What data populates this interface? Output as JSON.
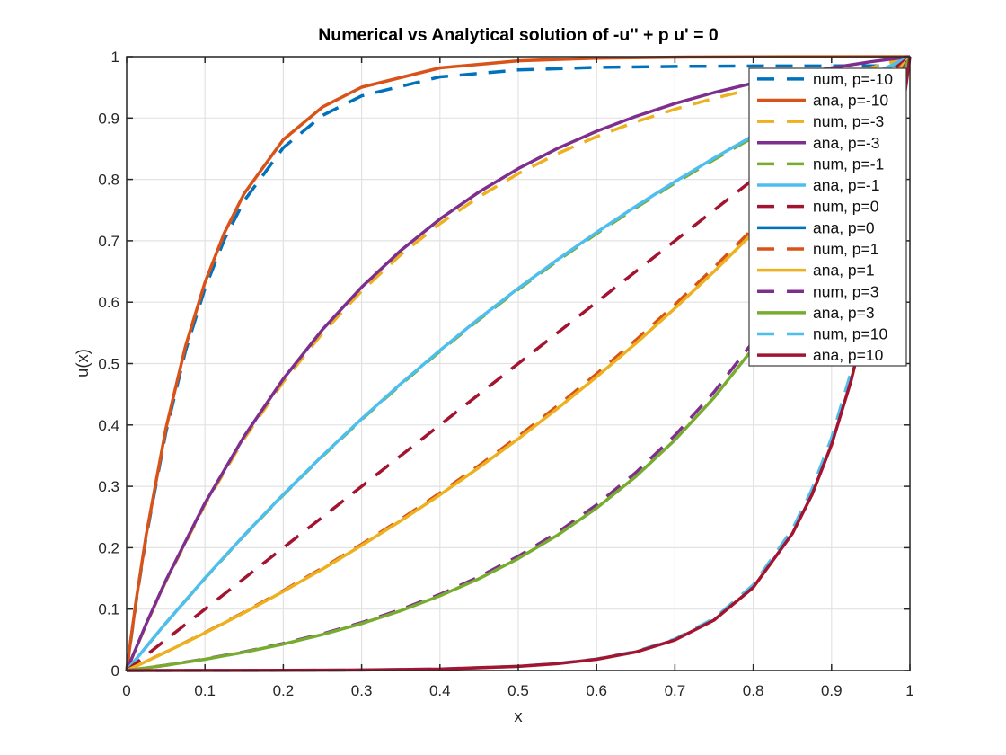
{
  "figure": {
    "background": "#ffffff",
    "axes_color": "#262626",
    "grid_color": "#e2e2e2",
    "legend_border_color": "#3b3b3b",
    "legend_background": "#ffffff"
  },
  "chart_data": {
    "type": "line",
    "title": "Numerical vs Analytical solution of -u'' + p u' = 0",
    "grid": true,
    "legend_position": "northeast-inside",
    "x_axis": {
      "label": "x",
      "min": 0,
      "max": 1,
      "ticks": [
        0,
        0.1,
        0.2,
        0.3,
        0.4,
        0.5,
        0.6,
        0.7,
        0.8,
        0.9,
        1
      ],
      "tick_labels": [
        "0",
        "0.1",
        "0.2",
        "0.3",
        "0.4",
        "0.5",
        "0.6",
        "0.7",
        "0.8",
        "0.9",
        "1"
      ]
    },
    "y_axis": {
      "label": "u(x)",
      "min": 0,
      "max": 1,
      "ticks": [
        0,
        0.1,
        0.2,
        0.3,
        0.4,
        0.5,
        0.6,
        0.7,
        0.8,
        0.9,
        1
      ],
      "tick_labels": [
        "0",
        "0.1",
        "0.2",
        "0.3",
        "0.4",
        "0.5",
        "0.6",
        "0.7",
        "0.8",
        "0.9",
        "1"
      ]
    },
    "series": [
      {
        "id": "num-p-neg10",
        "label": "num, p=-10",
        "p": -10,
        "kind": "numerical",
        "color": "#0072BD",
        "line": "dashed",
        "x": [
          0,
          0.0125,
          0.025,
          0.05,
          0.075,
          0.1,
          0.125,
          0.15,
          0.2,
          0.25,
          0.3,
          0.4,
          0.5,
          0.6,
          0.7,
          0.8,
          0.9,
          0.9875,
          1
        ],
        "y": [
          0,
          0.1157,
          0.2179,
          0.3876,
          0.5197,
          0.6226,
          0.7028,
          0.7652,
          0.8517,
          0.9041,
          0.936,
          0.967,
          0.9784,
          0.9825,
          0.9841,
          0.9847,
          0.9849,
          0.985,
          1
        ]
      },
      {
        "id": "ana-p-neg10",
        "label": "ana, p=-10",
        "p": -10,
        "kind": "analytical",
        "color": "#D95319",
        "line": "solid",
        "x": [
          0,
          0.0125,
          0.025,
          0.05,
          0.075,
          0.1,
          0.125,
          0.15,
          0.2,
          0.25,
          0.3,
          0.4,
          0.5,
          0.6,
          0.7,
          0.8,
          0.9,
          1
        ],
        "y": [
          0,
          0.1175,
          0.2212,
          0.3935,
          0.5276,
          0.6321,
          0.7135,
          0.7769,
          0.8647,
          0.9179,
          0.9502,
          0.9817,
          0.9933,
          0.9975,
          0.9991,
          0.9997,
          0.9999,
          1
        ]
      },
      {
        "id": "num-p-neg3",
        "label": "num, p=-3",
        "p": -3,
        "kind": "numerical",
        "color": "#EDB120",
        "line": "dashed",
        "x": [
          0,
          0.025,
          0.05,
          0.1,
          0.15,
          0.2,
          0.25,
          0.3,
          0.35,
          0.4,
          0.45,
          0.5,
          0.55,
          0.6,
          0.65,
          0.7,
          0.75,
          0.8,
          0.85,
          0.9,
          0.95,
          1
        ],
        "y": [
          0,
          0.0753,
          0.1451,
          0.2701,
          0.3776,
          0.4702,
          0.5497,
          0.6183,
          0.6774,
          0.728,
          0.7718,
          0.8094,
          0.8419,
          0.8697,
          0.8937,
          0.9143,
          0.9321,
          0.9474,
          0.9605,
          0.9719,
          0.9817,
          1
        ]
      },
      {
        "id": "ana-p-neg3",
        "label": "ana, p=-3",
        "p": -3,
        "kind": "analytical",
        "color": "#7E2F8E",
        "line": "solid",
        "x": [
          0,
          0.025,
          0.05,
          0.1,
          0.15,
          0.2,
          0.25,
          0.3,
          0.35,
          0.4,
          0.45,
          0.5,
          0.55,
          0.6,
          0.65,
          0.7,
          0.75,
          0.8,
          0.85,
          0.9,
          0.95,
          1
        ],
        "y": [
          0,
          0.0761,
          0.1466,
          0.2728,
          0.3814,
          0.4749,
          0.5553,
          0.6245,
          0.6842,
          0.7354,
          0.7796,
          0.8176,
          0.8504,
          0.8785,
          0.9027,
          0.9235,
          0.9415,
          0.957,
          0.9702,
          0.9817,
          0.9916,
          1
        ]
      },
      {
        "id": "num-p-neg1",
        "label": "num, p=-1",
        "p": -1,
        "kind": "numerical",
        "color": "#77AC30",
        "line": "dashed",
        "x": [
          0,
          0.05,
          0.1,
          0.15,
          0.2,
          0.25,
          0.3,
          0.35,
          0.4,
          0.45,
          0.5,
          0.55,
          0.6,
          0.65,
          0.7,
          0.75,
          0.8,
          0.85,
          0.9,
          0.95,
          1
        ],
        "y": [
          0,
          0.077,
          0.1501,
          0.2197,
          0.2859,
          0.3489,
          0.4088,
          0.4658,
          0.5199,
          0.5716,
          0.6206,
          0.6673,
          0.7117,
          0.7538,
          0.7939,
          0.8322,
          0.8685,
          0.9031,
          0.936,
          0.9673,
          1
        ]
      },
      {
        "id": "ana-p-neg1",
        "label": "ana, p=-1",
        "p": -1,
        "kind": "analytical",
        "color": "#4DBEEE",
        "line": "solid",
        "x": [
          0,
          0.05,
          0.1,
          0.15,
          0.2,
          0.25,
          0.3,
          0.35,
          0.4,
          0.45,
          0.5,
          0.55,
          0.6,
          0.65,
          0.7,
          0.75,
          0.8,
          0.85,
          0.9,
          0.95,
          1
        ],
        "y": [
          0,
          0.0772,
          0.1506,
          0.2204,
          0.2868,
          0.3499,
          0.41,
          0.4672,
          0.5215,
          0.5733,
          0.6225,
          0.6693,
          0.7138,
          0.7561,
          0.7963,
          0.8347,
          0.8711,
          0.9058,
          0.9388,
          0.9702,
          1
        ]
      },
      {
        "id": "num-p-0",
        "label": "num, p=0",
        "p": 0,
        "kind": "numerical",
        "color": "#A2142F",
        "line": "dashed",
        "x": [
          0,
          0.25,
          0.5,
          0.75,
          1
        ],
        "y": [
          0,
          0.25,
          0.5,
          0.75,
          1
        ]
      },
      {
        "id": "ana-p-0",
        "label": "ana, p=0",
        "p": 0,
        "kind": "analytical",
        "color": "#0072BD",
        "line": "solid",
        "x": [],
        "y": [],
        "rendered": false
      },
      {
        "id": "num-p-1",
        "label": "num, p=1",
        "p": 1,
        "kind": "numerical",
        "color": "#D95319",
        "line": "dashed",
        "x": [
          0,
          0.05,
          0.1,
          0.15,
          0.2,
          0.25,
          0.3,
          0.35,
          0.4,
          0.45,
          0.5,
          0.55,
          0.6,
          0.65,
          0.7,
          0.75,
          0.8,
          0.85,
          0.9,
          0.95,
          1
        ],
        "y": [
          0,
          0.0302,
          0.0618,
          0.0951,
          0.1302,
          0.167,
          0.2056,
          0.2463,
          0.2891,
          0.334,
          0.3813,
          0.4311,
          0.4832,
          0.5381,
          0.5959,
          0.6566,
          0.7203,
          0.7874,
          0.858,
          0.932,
          1
        ]
      },
      {
        "id": "ana-p-1",
        "label": "ana, p=1",
        "p": 1,
        "kind": "analytical",
        "color": "#EDB120",
        "line": "solid",
        "x": [
          0,
          0.05,
          0.1,
          0.15,
          0.2,
          0.25,
          0.3,
          0.35,
          0.4,
          0.45,
          0.5,
          0.55,
          0.6,
          0.65,
          0.7,
          0.75,
          0.8,
          0.85,
          0.9,
          0.95,
          1
        ],
        "y": [
          0,
          0.0299,
          0.0612,
          0.0942,
          0.1289,
          0.1653,
          0.2036,
          0.2439,
          0.2862,
          0.3307,
          0.3775,
          0.4268,
          0.4784,
          0.5328,
          0.59,
          0.6501,
          0.7132,
          0.7796,
          0.8495,
          0.9228,
          1
        ]
      },
      {
        "id": "num-p-3",
        "label": "num, p=3",
        "p": 3,
        "kind": "numerical",
        "color": "#7E2F8E",
        "line": "dashed",
        "x": [
          0,
          0.05,
          0.1,
          0.15,
          0.2,
          0.25,
          0.3,
          0.35,
          0.4,
          0.45,
          0.5,
          0.55,
          0.6,
          0.65,
          0.7,
          0.75,
          0.8,
          0.85,
          0.9,
          0.95,
          0.975,
          1
        ],
        "y": [
          0,
          0.0087,
          0.0187,
          0.0304,
          0.044,
          0.0597,
          0.078,
          0.0992,
          0.124,
          0.1527,
          0.1861,
          0.2248,
          0.2699,
          0.3222,
          0.383,
          0.4536,
          0.5357,
          0.631,
          0.7417,
          0.8705,
          0.9422,
          1
        ]
      },
      {
        "id": "ana-p-3",
        "label": "ana, p=3",
        "p": 3,
        "kind": "analytical",
        "color": "#77AC30",
        "line": "solid",
        "x": [
          0,
          0.05,
          0.1,
          0.15,
          0.2,
          0.25,
          0.3,
          0.35,
          0.4,
          0.45,
          0.5,
          0.55,
          0.6,
          0.65,
          0.7,
          0.75,
          0.8,
          0.85,
          0.9,
          0.95,
          0.975,
          1
        ],
        "y": [
          0,
          0.0085,
          0.0183,
          0.0298,
          0.0431,
          0.0585,
          0.0765,
          0.0973,
          0.1216,
          0.1497,
          0.1824,
          0.2204,
          0.2646,
          0.3159,
          0.3755,
          0.4447,
          0.5252,
          0.6186,
          0.7272,
          0.8534,
          0.9237,
          1
        ]
      },
      {
        "id": "num-p-10",
        "label": "num, p=10",
        "p": 10,
        "kind": "numerical",
        "color": "#4DBEEE",
        "line": "dashed",
        "x": [
          0,
          0.1,
          0.2,
          0.3,
          0.4,
          0.5,
          0.55,
          0.6,
          0.65,
          0.7,
          0.75,
          0.8,
          0.85,
          0.875,
          0.9,
          0.925,
          0.95,
          0.9625,
          0.975,
          0.9875,
          1
        ],
        "y": [
          0,
          0.0001,
          0.0003,
          0.0009,
          0.0025,
          0.0069,
          0.0114,
          0.0188,
          0.0311,
          0.0512,
          0.0846,
          0.1394,
          0.2298,
          0.2951,
          0.3789,
          0.4866,
          0.6247,
          0.7079,
          0.8022,
          0.909,
          1
        ]
      },
      {
        "id": "ana-p-10",
        "label": "ana, p=10",
        "p": 10,
        "kind": "analytical",
        "color": "#A2142F",
        "line": "solid",
        "x": [
          0,
          0.1,
          0.2,
          0.3,
          0.4,
          0.5,
          0.55,
          0.6,
          0.65,
          0.7,
          0.75,
          0.8,
          0.85,
          0.875,
          0.9,
          0.925,
          0.95,
          0.9625,
          0.975,
          0.9875,
          1
        ],
        "y": [
          0,
          0.0001,
          0.0003,
          0.0009,
          0.0024,
          0.0067,
          0.0111,
          0.0183,
          0.0302,
          0.0497,
          0.0821,
          0.1353,
          0.2231,
          0.2865,
          0.3679,
          0.4724,
          0.6065,
          0.6873,
          0.7788,
          0.8825,
          1
        ]
      }
    ]
  }
}
